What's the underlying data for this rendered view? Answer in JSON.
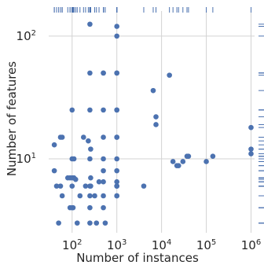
{
  "chart_data": {
    "type": "scatter",
    "title": "",
    "xlabel": "Number of instances",
    "ylabel": "Number of features",
    "x_scale": "log",
    "y_scale": "log",
    "xlim": [
      30,
      1200000
    ],
    "ylim": [
      2.5,
      160
    ],
    "grid": true,
    "marginal_rugs": [
      "top",
      "right"
    ],
    "colors": {
      "points": "#4c72b0",
      "rug": "#4c72b0",
      "grid": "#d3d3d3",
      "text": "#262626"
    },
    "x_ticks": [
      {
        "value": 100,
        "base": "10",
        "exp": "2"
      },
      {
        "value": 1000,
        "base": "10",
        "exp": "3"
      },
      {
        "value": 10000,
        "base": "10",
        "exp": "4"
      },
      {
        "value": 100000,
        "base": "10",
        "exp": "5"
      },
      {
        "value": 1000000,
        "base": "10",
        "exp": "6"
      }
    ],
    "y_ticks": [
      {
        "value": 10,
        "base": "10",
        "exp": "1"
      },
      {
        "value": 100,
        "base": "10",
        "exp": "2"
      }
    ],
    "points": [
      [
        250,
        125
      ],
      [
        1000,
        120
      ],
      [
        1000,
        100
      ],
      [
        250,
        50
      ],
      [
        500,
        50
      ],
      [
        500,
        50
      ],
      [
        1000,
        50
      ],
      [
        1000,
        50
      ],
      [
        15000,
        48
      ],
      [
        6500,
        36
      ],
      [
        100,
        25
      ],
      [
        250,
        25
      ],
      [
        500,
        25
      ],
      [
        1000,
        25
      ],
      [
        1000,
        25
      ],
      [
        7500,
        22
      ],
      [
        7500,
        19
      ],
      [
        1000000,
        18
      ],
      [
        60,
        15
      ],
      [
        55,
        15
      ],
      [
        180,
        15
      ],
      [
        230,
        14
      ],
      [
        500,
        15
      ],
      [
        1000,
        15
      ],
      [
        1000,
        15
      ],
      [
        40,
        13
      ],
      [
        260,
        12
      ],
      [
        1000000,
        11
      ],
      [
        1000000,
        12
      ],
      [
        100,
        10
      ],
      [
        110,
        10
      ],
      [
        250,
        10
      ],
      [
        500,
        10
      ],
      [
        1000,
        10
      ],
      [
        40000,
        10.5
      ],
      [
        37000,
        10.5
      ],
      [
        140000,
        10.5
      ],
      [
        18000,
        9.5
      ],
      [
        100000,
        9.5
      ],
      [
        22000,
        8.8
      ],
      [
        24000,
        8.8
      ],
      [
        30000,
        9.5
      ],
      [
        40,
        8
      ],
      [
        500,
        8
      ],
      [
        1000,
        8
      ],
      [
        80,
        7
      ],
      [
        90,
        7
      ],
      [
        100,
        7
      ],
      [
        110,
        7
      ],
      [
        260,
        7
      ],
      [
        120,
        6.8
      ],
      [
        400,
        6.5
      ],
      [
        500,
        6.5
      ],
      [
        1000,
        6.5
      ],
      [
        45,
        6
      ],
      [
        55,
        6
      ],
      [
        100,
        6
      ],
      [
        200,
        6
      ],
      [
        250,
        6
      ],
      [
        260,
        6
      ],
      [
        1000,
        6
      ],
      [
        1000,
        6
      ],
      [
        4000,
        6
      ],
      [
        60,
        5
      ],
      [
        150,
        5
      ],
      [
        250,
        5
      ],
      [
        320,
        5
      ],
      [
        500,
        5
      ],
      [
        1000,
        5
      ],
      [
        1000,
        5
      ],
      [
        90,
        4
      ],
      [
        100,
        4
      ],
      [
        105,
        4
      ],
      [
        250,
        4
      ],
      [
        500,
        4
      ],
      [
        50,
        3
      ],
      [
        130,
        3
      ],
      [
        250,
        3
      ],
      [
        350,
        3
      ],
      [
        550,
        3
      ]
    ]
  }
}
